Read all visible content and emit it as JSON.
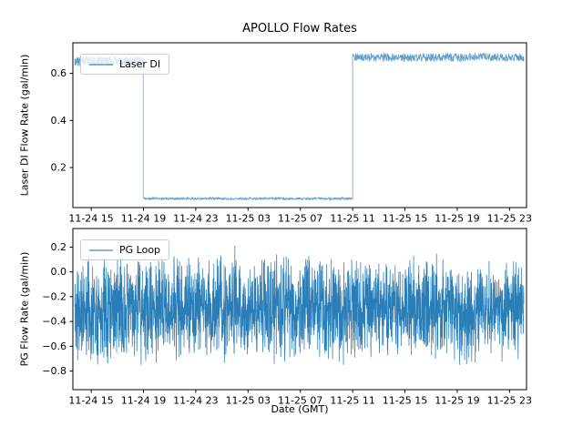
{
  "figure": {
    "title": "APOLLO Flow Rates",
    "background": "#ffffff"
  },
  "colors": {
    "series_blue": "#1f77b4",
    "axis": "#000000",
    "legend_border": "#cccccc"
  },
  "chart_data": [
    {
      "type": "line",
      "title": "APOLLO Flow Rates",
      "ylabel": "Laser DI Flow Rate (gal/min)",
      "xlabel": "",
      "grid": false,
      "legend_position": "upper left",
      "xlim": [
        13.6,
        48.3
      ],
      "ylim": [
        0.03,
        0.73
      ],
      "xticks": [
        {
          "v": 15,
          "label": "11-24 15"
        },
        {
          "v": 19,
          "label": "11-24 19"
        },
        {
          "v": 23,
          "label": "11-24 23"
        },
        {
          "v": 27,
          "label": "11-25 03"
        },
        {
          "v": 31,
          "label": "11-25 07"
        },
        {
          "v": 35,
          "label": "11-25 11"
        },
        {
          "v": 39,
          "label": "11-25 15"
        },
        {
          "v": 43,
          "label": "11-25 19"
        },
        {
          "v": 47,
          "label": "11-25 23"
        }
      ],
      "yticks": [
        {
          "v": 0.2,
          "label": "0.2"
        },
        {
          "v": 0.4,
          "label": "0.4"
        },
        {
          "v": 0.6,
          "label": "0.6"
        }
      ],
      "series": [
        {
          "name": "Laser DI",
          "color": "#1f77b4",
          "opacity": 0.7,
          "seed": 3,
          "segments": [
            {
              "x0": 13.75,
              "x1": 18.98,
              "mean": 0.652,
              "noise": 0.02,
              "points": 520,
              "dist": "uniform"
            },
            {
              "x0": 18.98,
              "x1": 35.0,
              "mean": 0.068,
              "noise": 0.005,
              "points": 720,
              "dist": "uniform"
            },
            {
              "x0": 35.0,
              "x1": 48.1,
              "mean": 0.668,
              "noise": 0.018,
              "points": 560,
              "dist": "uniform"
            }
          ],
          "summary": "about 0.65 gal/min until 11-24 19, drops to about 0.07 until 11-25 11, then returns to about 0.67 through 11-25 23"
        }
      ]
    },
    {
      "type": "line",
      "title": "",
      "ylabel": "PG Flow Rate (gal/min)",
      "xlabel": "Date (GMT)",
      "grid": false,
      "legend_position": "upper left",
      "xlim": [
        13.6,
        48.3
      ],
      "ylim": [
        -0.95,
        0.35
      ],
      "xticks": [
        {
          "v": 15,
          "label": "11-24 15"
        },
        {
          "v": 19,
          "label": "11-24 19"
        },
        {
          "v": 23,
          "label": "11-24 23"
        },
        {
          "v": 27,
          "label": "11-25 03"
        },
        {
          "v": 31,
          "label": "11-25 07"
        },
        {
          "v": 35,
          "label": "11-25 11"
        },
        {
          "v": 39,
          "label": "11-25 15"
        },
        {
          "v": 43,
          "label": "11-25 19"
        },
        {
          "v": 47,
          "label": "11-25 23"
        }
      ],
      "yticks": [
        {
          "v": -0.8,
          "label": "−0.8"
        },
        {
          "v": -0.6,
          "label": "−0.6"
        },
        {
          "v": -0.4,
          "label": "−0.4"
        },
        {
          "v": -0.2,
          "label": "−0.2"
        },
        {
          "v": 0.0,
          "label": "0.0"
        },
        {
          "v": 0.2,
          "label": "0.2"
        }
      ],
      "series": [
        {
          "name": "PG Loop",
          "color": "#1f77b4",
          "opacity": 0.95,
          "seed": 11,
          "segments": [
            {
              "x0": 13.75,
              "x1": 48.1,
              "mean": -0.3,
              "noise": 0.46,
              "points": 2400,
              "dist": "triangular",
              "spike_chance": 0.05,
              "spike": 0.22,
              "clip": [
                -0.87,
                0.27
              ]
            }
          ],
          "summary": "dense noise band between about -0.8 and +0.2 gal/min across the full time range"
        }
      ]
    }
  ]
}
